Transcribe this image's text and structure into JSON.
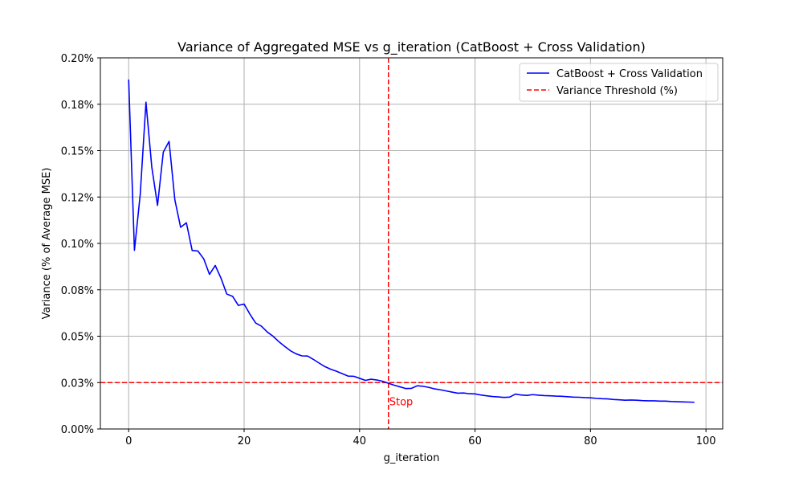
{
  "chart_data": {
    "type": "line",
    "title": "Variance of Aggregated MSE vs g_iteration (CatBoost + Cross Validation)",
    "xlabel": "g_iteration",
    "ylabel": "Variance (% of Average MSE)",
    "xlim": [
      -4.9,
      102.9
    ],
    "ylim": [
      0,
      0.002
    ],
    "xticks": [
      0,
      20,
      40,
      60,
      80,
      100
    ],
    "xtick_labels": [
      "0",
      "20",
      "40",
      "60",
      "80",
      "100"
    ],
    "yticks": [
      0,
      0.00025,
      0.0005,
      0.00075,
      0.001,
      0.00125,
      0.0015,
      0.00175,
      0.002
    ],
    "ytick_labels": [
      "0.00%",
      "0.03%",
      "0.05%",
      "0.08%",
      "0.10%",
      "0.12%",
      "0.15%",
      "0.18%",
      "0.20%"
    ],
    "grid": true,
    "legend_position": "top-right",
    "series": [
      {
        "name": "CatBoost + Cross Validation",
        "color": "#0000ff",
        "style": "solid",
        "x": [
          0,
          1,
          2,
          3,
          4,
          5,
          6,
          7,
          8,
          9,
          10,
          11,
          12,
          13,
          14,
          15,
          16,
          17,
          18,
          19,
          20,
          21,
          22,
          23,
          24,
          25,
          26,
          27,
          28,
          29,
          30,
          31,
          32,
          33,
          34,
          35,
          36,
          37,
          38,
          39,
          40,
          41,
          42,
          43,
          44,
          45,
          46,
          47,
          48,
          49,
          50,
          51,
          52,
          53,
          54,
          55,
          56,
          57,
          58,
          59,
          60,
          61,
          62,
          63,
          64,
          65,
          66,
          67,
          68,
          69,
          70,
          71,
          72,
          73,
          74,
          75,
          76,
          77,
          78,
          79,
          80,
          81,
          82,
          83,
          84,
          85,
          86,
          87,
          88,
          89,
          90,
          91,
          92,
          93,
          94,
          95,
          96,
          97,
          98
        ],
        "y": [
          0.001883,
          0.000963,
          0.001263,
          0.001761,
          0.001413,
          0.001205,
          0.001492,
          0.00155,
          0.001235,
          0.001087,
          0.001111,
          0.000962,
          0.000959,
          0.000917,
          0.000833,
          0.000881,
          0.000812,
          0.000727,
          0.000715,
          0.000666,
          0.000673,
          0.000619,
          0.000571,
          0.000554,
          0.000523,
          0.0005,
          0.000471,
          0.000446,
          0.000422,
          0.000405,
          0.000394,
          0.000393,
          0.000375,
          0.000355,
          0.000336,
          0.000322,
          0.000311,
          0.000298,
          0.000285,
          0.000284,
          0.000273,
          0.000262,
          0.000268,
          0.000264,
          0.000257,
          0.000246,
          0.000236,
          0.000227,
          0.000218,
          0.000219,
          0.000233,
          0.00023,
          0.000224,
          0.000216,
          0.000211,
          0.000205,
          0.000199,
          0.000193,
          0.000194,
          0.00019,
          0.000189,
          0.000183,
          0.000179,
          0.000175,
          0.000173,
          0.00017,
          0.000172,
          0.000188,
          0.000183,
          0.000181,
          0.000185,
          0.000182,
          0.00018,
          0.000179,
          0.000177,
          0.000176,
          0.000174,
          0.000172,
          0.000171,
          0.000169,
          0.000168,
          0.000165,
          0.000163,
          0.000162,
          0.000159,
          0.000157,
          0.000155,
          0.000156,
          0.000155,
          0.000153,
          0.000152,
          0.000152,
          0.00015,
          0.00015,
          0.000148,
          0.000147,
          0.000146,
          0.000145,
          0.000144
        ]
      }
    ],
    "threshold": {
      "name": "Variance Threshold (%)",
      "color": "#ff0000",
      "style": "dashed",
      "y": 0.00025
    },
    "stop_line": {
      "x": 45,
      "color": "#ff0000",
      "style": "dashed"
    },
    "annotations": [
      {
        "text": "Stop",
        "x": 45,
        "y": 0.00015,
        "color": "#ff0000"
      }
    ]
  }
}
